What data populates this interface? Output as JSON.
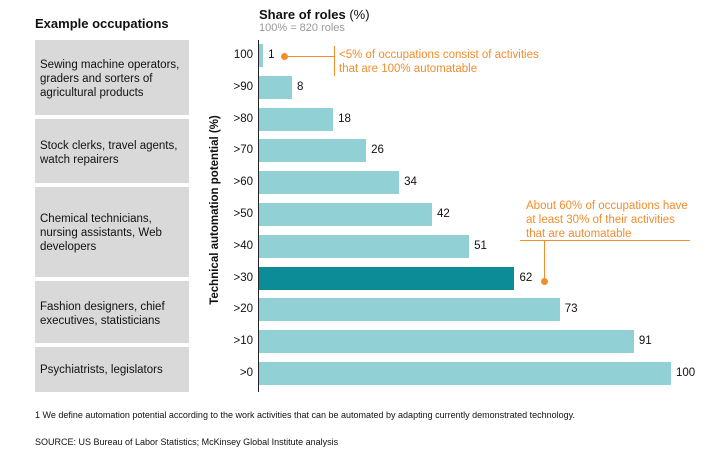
{
  "header": {
    "occupations": "Example occupations",
    "share_title": "Share of roles",
    "share_unit": "(%)",
    "share_sub": "100% = 820 roles"
  },
  "occupations": [
    "Sewing machine operators, graders and sorters of agricultural products",
    "Stock clerks, travel agents, watch repairers",
    "Chemical technicians, nursing assistants, Web developers",
    "Fashion designers, chief executives, statisticians",
    "Psychiatrists, legislators"
  ],
  "chart_data": {
    "type": "bar",
    "orientation": "horizontal",
    "ylabel": "Technical automation potential (%)",
    "xlabel": "Share of roles (%)",
    "categories": [
      "100",
      ">90",
      ">80",
      ">70",
      ">60",
      ">50",
      ">40",
      ">30",
      ">20",
      ">10",
      ">0"
    ],
    "values": [
      1,
      8,
      18,
      26,
      34,
      42,
      51,
      62,
      73,
      91,
      100
    ],
    "highlight": [
      ">30"
    ],
    "xlim": [
      0,
      100
    ],
    "colors": {
      "bar": "#91d1d6",
      "highlight": "#0c8c96",
      "annotation": "#f28d2e"
    }
  },
  "annotations": {
    "top": "<5% of occupations consist of activities that are 100% automatable",
    "mid": "About 60% of occupations have at least 30% of their activities that are automatable"
  },
  "footnotes": {
    "note": "1  We define automation potential according to the work activities that can be automated by adapting currently demonstrated technology.",
    "source": "SOURCE: US Bureau of Labor Statistics; McKinsey Global Institute analysis"
  }
}
